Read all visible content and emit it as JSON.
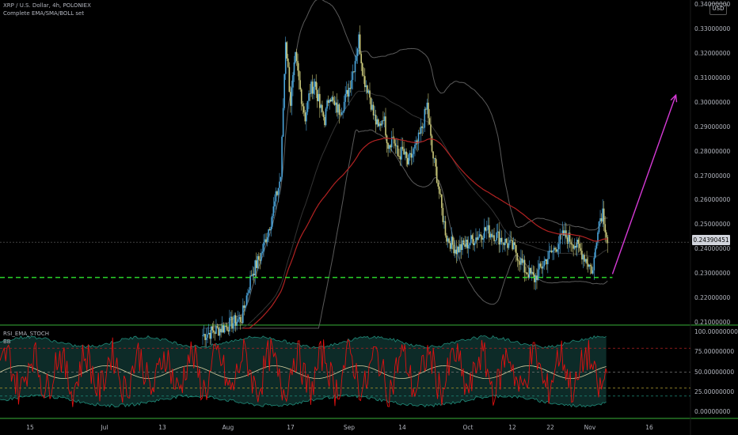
{
  "chart_data": [
    {
      "type": "candlestick",
      "symbol_line": "XRP / U.S. Dollar, 4h, POLONIEX",
      "indicator_line": "Complete EMA/SMA/BOLL set",
      "currency_button": "USD",
      "last_price_label": "0.24390451",
      "y_tick_labels": [
        "0.34000000",
        "0.33000000",
        "0.32000000",
        "0.31000000",
        "0.30000000",
        "0.29000000",
        "0.28000000",
        "0.27000000",
        "0.26000000",
        "0.25000000",
        "0.24000000",
        "0.23000000",
        "0.22000000",
        "0.21000000"
      ],
      "y_ticks": [
        0.34,
        0.33,
        0.32,
        0.31,
        0.3,
        0.29,
        0.28,
        0.27,
        0.26,
        0.25,
        0.24,
        0.23,
        0.22,
        0.21
      ],
      "ylim": [
        0.2095,
        0.3418
      ],
      "x_tick_labels": [
        "15",
        "Jul",
        "13",
        "Aug",
        "17",
        "Sep",
        "14",
        "Oct",
        "12",
        "22",
        "Nov",
        "16"
      ],
      "support_level": 0.2286,
      "close_path": [
        [
          0,
          0.205
        ],
        [
          4,
          0.208
        ],
        [
          8,
          0.212
        ],
        [
          10,
          0.23
        ],
        [
          12,
          0.238
        ],
        [
          14,
          0.252
        ],
        [
          16,
          0.27
        ],
        [
          17,
          0.326
        ],
        [
          18,
          0.3
        ],
        [
          19,
          0.318
        ],
        [
          20,
          0.305
        ],
        [
          21,
          0.294
        ],
        [
          22,
          0.305
        ],
        [
          23,
          0.308
        ],
        [
          24,
          0.298
        ],
        [
          25,
          0.293
        ],
        [
          26,
          0.304
        ],
        [
          27,
          0.298
        ],
        [
          28,
          0.297
        ],
        [
          29,
          0.3
        ],
        [
          30,
          0.306
        ],
        [
          31,
          0.315
        ],
        [
          32,
          0.326
        ],
        [
          33,
          0.31
        ],
        [
          34,
          0.305
        ],
        [
          35,
          0.295
        ],
        [
          36,
          0.289
        ],
        [
          37,
          0.295
        ],
        [
          38,
          0.283
        ],
        [
          39,
          0.286
        ],
        [
          40,
          0.278
        ],
        [
          41,
          0.28
        ],
        [
          42,
          0.275
        ],
        [
          43,
          0.279
        ],
        [
          44,
          0.283
        ],
        [
          45,
          0.29
        ],
        [
          46,
          0.299
        ],
        [
          47,
          0.28
        ],
        [
          48,
          0.27
        ],
        [
          49,
          0.256
        ],
        [
          50,
          0.245
        ],
        [
          52,
          0.24
        ],
        [
          54,
          0.242
        ],
        [
          56,
          0.245
        ],
        [
          58,
          0.248
        ],
        [
          60,
          0.246
        ],
        [
          62,
          0.243
        ],
        [
          64,
          0.24
        ],
        [
          66,
          0.232
        ],
        [
          68,
          0.228
        ],
        [
          70,
          0.235
        ],
        [
          72,
          0.24
        ],
        [
          74,
          0.246
        ],
        [
          76,
          0.243
        ],
        [
          78,
          0.238
        ],
        [
          80,
          0.231
        ],
        [
          81,
          0.25
        ],
        [
          82,
          0.256
        ],
        [
          83,
          0.243
        ]
      ],
      "projection_arrow": {
        "from": [
          84,
          0.23
        ],
        "to": [
          97,
          0.303
        ]
      },
      "oscillator": {
        "title": "RSI_EMA_STOCH",
        "subtitle": "BB",
        "y_tick_labels": [
          "100.00000000",
          "75.00000000",
          "50.00000000",
          "25.00000000",
          "0.00000000"
        ],
        "y_ticks": [
          100,
          75,
          50,
          25,
          0
        ],
        "ylim": [
          -7,
          107
        ],
        "levels": [
          80,
          50,
          30,
          20
        ]
      }
    }
  ],
  "colors": {
    "background": "#000000",
    "candle": "#c9c77a",
    "candle_alt": "#4aa3d9",
    "ema": "#b22222",
    "bollinger": "#5a5a5a",
    "support": "#2ee82e",
    "arrow": "#d63ad6",
    "rsi": "#e01010",
    "osc_band": "#1f8c7a",
    "divider": "#39b039"
  }
}
